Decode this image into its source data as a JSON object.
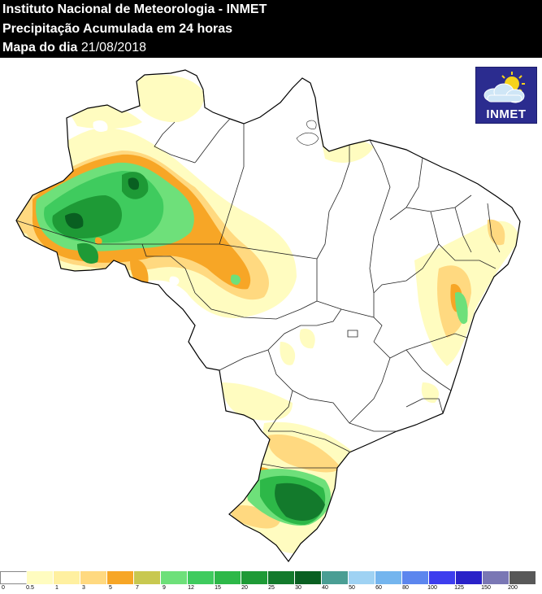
{
  "header": {
    "line1": "Instituto Nacional de Meteorologia - INMET",
    "line2": "Precipitação Acumulada em 24 horas",
    "line3_label": "Mapa do dia",
    "line3_date": "21/08/2018"
  },
  "logo": {
    "text": "INMET",
    "icon": "cloud-sun-icon"
  },
  "legend": {
    "colors": [
      "#ffffff",
      "#fffcc0",
      "#fff0a0",
      "#ffd980",
      "#f7a626",
      "#c8c850",
      "#6ee07a",
      "#3fcb5e",
      "#2db848",
      "#1e9a36",
      "#137a2c",
      "#095f21",
      "#4a9e94",
      "#9fd2f3",
      "#74b5ee",
      "#5c86ee",
      "#3d3dee",
      "#2a22c8",
      "#7a77b4",
      "#585858"
    ],
    "labels": [
      "0",
      "0.5",
      "1",
      "3",
      "5",
      "7",
      "9",
      "12",
      "15",
      "20",
      "25",
      "30",
      "40",
      "50",
      "60",
      "80",
      "100",
      "125",
      "150",
      "200"
    ]
  }
}
